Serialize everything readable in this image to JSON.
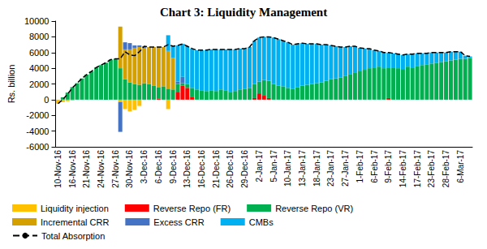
{
  "chart_data": {
    "type": "bar",
    "title": "Chart 3: Liquidity Management",
    "ylabel": "Rs. billion",
    "stacked": true,
    "grid": false,
    "legend": "bottom",
    "ylim": [
      -6000,
      10000
    ],
    "yticks": [
      -6000,
      -4000,
      -2000,
      0,
      2000,
      4000,
      6000,
      8000,
      10000
    ],
    "categories": [
      "10-Nov-16",
      null,
      null,
      "16-Nov-16",
      null,
      null,
      "21-Nov-16",
      null,
      null,
      "24-Nov-16",
      null,
      null,
      "27-Nov-16",
      null,
      null,
      "30-Nov-16",
      null,
      null,
      "3-Dec-16",
      null,
      null,
      "6-Dec-16",
      null,
      null,
      "9-Dec-16",
      null,
      null,
      "13-Dec-16",
      null,
      null,
      "16-Dec-16",
      null,
      null,
      "21-Dec-16",
      null,
      null,
      "26-Dec-16",
      null,
      null,
      "29-Dec-16",
      null,
      null,
      "2-Jan-17",
      null,
      null,
      "5-Jan-17",
      null,
      null,
      "10-Jan-17",
      null,
      null,
      "13-Jan-17",
      null,
      null,
      "18-Jan-17",
      null,
      null,
      "23-Jan-17",
      null,
      null,
      "27-Jan-17",
      null,
      null,
      "1-Feb-17",
      null,
      null,
      "6-Feb-17",
      null,
      null,
      "9-Feb-17",
      null,
      null,
      "14-Feb-17",
      null,
      null,
      "17-Feb-17",
      null,
      null,
      "23-Feb-17",
      null,
      null,
      "28-Feb-17",
      null,
      null,
      "6-Mar-17",
      null,
      null
    ],
    "series": [
      {
        "name": "Liquidity injection",
        "color": "#FFC000",
        "values": [
          -500,
          -300,
          -200,
          -100,
          0,
          0,
          0,
          0,
          0,
          0,
          0,
          0,
          0,
          -300,
          -1200,
          -1500,
          -1300,
          -800,
          0,
          0,
          0,
          0,
          0,
          -1200,
          0,
          0,
          0,
          0,
          0,
          0,
          0,
          0,
          0,
          0,
          0,
          0,
          0,
          0,
          0,
          0,
          0,
          0,
          0,
          0,
          0,
          0,
          0,
          0,
          0,
          0,
          0,
          0,
          0,
          0,
          0,
          0,
          0,
          0,
          0,
          0,
          0,
          0,
          0,
          0,
          0,
          0,
          0,
          0,
          0,
          0,
          0,
          0,
          0,
          0,
          0,
          0,
          0,
          0,
          0,
          0,
          0,
          0,
          0,
          0,
          0,
          0,
          0
        ]
      },
      {
        "name": "Reverse Repo (FR)",
        "color": "#FF0000",
        "values": [
          0,
          0,
          0,
          0,
          0,
          0,
          0,
          0,
          0,
          0,
          0,
          0,
          0,
          0,
          0,
          0,
          0,
          0,
          0,
          0,
          0,
          100,
          0,
          0,
          0,
          1000,
          1800,
          1500,
          300,
          0,
          0,
          0,
          0,
          0,
          0,
          0,
          0,
          0,
          0,
          0,
          0,
          200,
          800,
          500,
          200,
          0,
          0,
          0,
          0,
          0,
          0,
          0,
          0,
          0,
          0,
          0,
          0,
          0,
          0,
          0,
          0,
          0,
          0,
          0,
          0,
          0,
          0,
          0,
          0,
          200,
          0,
          0,
          0,
          0,
          0,
          0,
          0,
          0,
          0,
          0,
          0,
          0,
          0,
          0,
          0,
          0,
          0
        ]
      },
      {
        "name": "Reverse Repo (VR)",
        "color": "#00B050",
        "values": [
          0,
          300,
          900,
          1600,
          2100,
          2700,
          3200,
          3600,
          4100,
          4400,
          4700,
          5100,
          5200,
          4000,
          2600,
          2200,
          2000,
          1900,
          2100,
          2000,
          1800,
          1500,
          1700,
          1400,
          1300,
          1000,
          300,
          500,
          1200,
          1300,
          1200,
          1100,
          1200,
          1100,
          1300,
          1200,
          1000,
          1100,
          1300,
          1400,
          1500,
          1800,
          1500,
          2000,
          2200,
          2000,
          1800,
          1700,
          1500,
          1400,
          1600,
          1800,
          1900,
          2000,
          2100,
          2200,
          2400,
          2600,
          2700,
          2800,
          3000,
          3200,
          3400,
          3600,
          3800,
          4000,
          4100,
          4200,
          4000,
          3900,
          4100,
          4000,
          3900,
          4200,
          4100,
          4300,
          4400,
          4500,
          4600,
          4700,
          4800,
          4900,
          5000,
          5100,
          5200,
          5200,
          5300
        ]
      },
      {
        "name": "Incremental CRR",
        "color": "#D4A000",
        "values": [
          0,
          0,
          0,
          0,
          0,
          0,
          0,
          0,
          0,
          0,
          0,
          0,
          0,
          5300,
          3800,
          4200,
          4600,
          4800,
          4500,
          4700,
          4900,
          5100,
          5000,
          4800,
          4000,
          0,
          0,
          0,
          0,
          0,
          0,
          0,
          0,
          0,
          0,
          0,
          0,
          0,
          0,
          0,
          0,
          0,
          0,
          0,
          0,
          0,
          0,
          0,
          0,
          0,
          0,
          0,
          0,
          0,
          0,
          0,
          0,
          0,
          0,
          0,
          0,
          0,
          0,
          0,
          0,
          0,
          0,
          0,
          0,
          0,
          0,
          0,
          0,
          0,
          0,
          0,
          0,
          0,
          0,
          0,
          0,
          0,
          0,
          0,
          0,
          0,
          0
        ]
      },
      {
        "name": "Excess CRR",
        "color": "#4472C4",
        "values": [
          0,
          0,
          0,
          0,
          0,
          0,
          0,
          0,
          0,
          0,
          0,
          0,
          0,
          -3800,
          900,
          800,
          300,
          200,
          200,
          0,
          0,
          0,
          0,
          0,
          0,
          300,
          800,
          0,
          0,
          0,
          0,
          0,
          0,
          0,
          0,
          0,
          0,
          0,
          0,
          0,
          0,
          0,
          0,
          0,
          0,
          0,
          0,
          0,
          0,
          0,
          0,
          0,
          0,
          0,
          0,
          0,
          0,
          0,
          0,
          0,
          0,
          0,
          0,
          0,
          0,
          0,
          0,
          0,
          0,
          0,
          0,
          0,
          0,
          0,
          0,
          0,
          0,
          0,
          0,
          0,
          0,
          0,
          0,
          0,
          0,
          0,
          0
        ]
      },
      {
        "name": "CMBs",
        "color": "#00B0F0",
        "values": [
          0,
          0,
          0,
          0,
          0,
          0,
          0,
          0,
          0,
          0,
          0,
          0,
          0,
          0,
          0,
          0,
          0,
          0,
          0,
          0,
          0,
          0,
          0,
          2000,
          1500,
          4600,
          4200,
          4800,
          5000,
          5000,
          5100,
          5200,
          5200,
          5300,
          5100,
          5200,
          5400,
          5300,
          5200,
          5100,
          5200,
          5500,
          5600,
          5500,
          5600,
          5900,
          5900,
          5800,
          5800,
          5600,
          5500,
          5400,
          5200,
          5100,
          5000,
          4800,
          4600,
          4300,
          4100,
          3900,
          3700,
          3600,
          3400,
          3000,
          2700,
          2500,
          2200,
          2000,
          2000,
          1900,
          1800,
          1800,
          1800,
          1600,
          1700,
          1600,
          1500,
          1400,
          1400,
          1300,
          1200,
          1100,
          1100,
          1000,
          900,
          400,
          200
        ]
      },
      {
        "name": "Total Absorption",
        "type": "line",
        "color": "#000000",
        "line_style": "dashed",
        "values": [
          -500,
          0,
          700,
          1500,
          2100,
          2700,
          3200,
          3600,
          4100,
          4400,
          4700,
          5100,
          5200,
          5200,
          6100,
          5700,
          5600,
          6100,
          6800,
          6700,
          6700,
          6700,
          6700,
          7000,
          6800,
          6900,
          7100,
          6800,
          6500,
          6300,
          6300,
          6300,
          6400,
          6400,
          6400,
          6400,
          6400,
          6400,
          6500,
          6500,
          6700,
          7500,
          7900,
          8000,
          8000,
          7900,
          7700,
          7500,
          7300,
          7000,
          7100,
          7200,
          7100,
          7100,
          7100,
          7000,
          7000,
          6900,
          6800,
          6700,
          6700,
          6800,
          6800,
          6600,
          6500,
          6500,
          6300,
          6200,
          6000,
          6000,
          5900,
          5800,
          5700,
          5800,
          5800,
          5900,
          5900,
          5900,
          6000,
          6000,
          6000,
          6000,
          6100,
          6100,
          6100,
          5600,
          5500
        ]
      }
    ]
  }
}
